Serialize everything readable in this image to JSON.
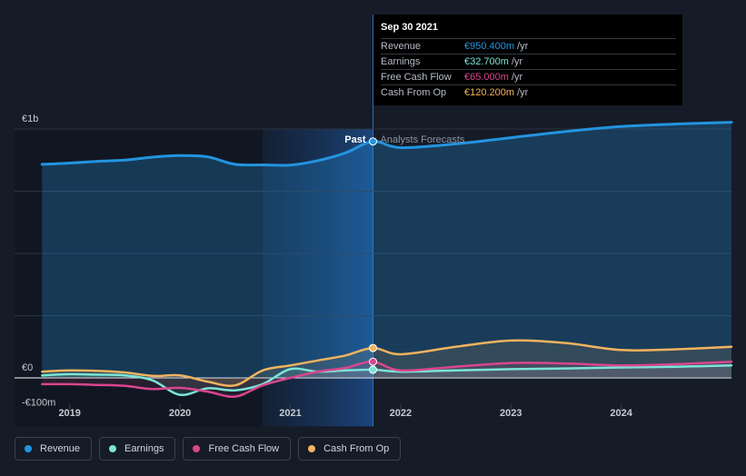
{
  "chart_data": {
    "type": "line",
    "title": "",
    "xlabel": "",
    "ylabel": "",
    "y_unit": "€m",
    "ylim": [
      -100,
      1000
    ],
    "y_ticks": [
      {
        "value": 1000,
        "label": "€1b"
      },
      {
        "value": 0,
        "label": "€0"
      },
      {
        "value": -100,
        "label": "-€100m"
      }
    ],
    "x_ticks": [
      "2019",
      "2020",
      "2021",
      "2022",
      "2023",
      "2024"
    ],
    "x_range": [
      2018.5,
      2025.0
    ],
    "past_forecast_split": 2021.75,
    "past_highlight_start": 2020.75,
    "region_labels": {
      "past": "Past",
      "forecast": "Analysts Forecasts"
    },
    "grid": true,
    "legend_position": "bottom-left",
    "series": [
      {
        "name": "Revenue",
        "color": "#2394df",
        "x": [
          2018.75,
          2019.0,
          2019.25,
          2019.5,
          2019.75,
          2020.0,
          2020.25,
          2020.5,
          2020.75,
          2021.0,
          2021.25,
          2021.5,
          2021.75,
          2022.0,
          2022.5,
          2023.0,
          2023.5,
          2024.0,
          2024.5,
          2025.0
        ],
        "y": [
          858,
          863,
          870,
          875,
          887,
          893,
          888,
          858,
          856,
          855,
          873,
          904,
          950,
          925,
          940,
          965,
          990,
          1010,
          1020,
          1027
        ]
      },
      {
        "name": "Earnings",
        "color": "#7ae5d7",
        "x": [
          2018.75,
          2019.0,
          2019.25,
          2019.5,
          2019.75,
          2020.0,
          2020.25,
          2020.5,
          2020.75,
          2021.0,
          2021.25,
          2021.5,
          2021.75,
          2022.0,
          2022.5,
          2023.0,
          2023.5,
          2024.0,
          2024.5,
          2025.0
        ],
        "y": [
          10,
          15,
          13,
          10,
          -10,
          -68,
          -42,
          -50,
          -25,
          35,
          25,
          30,
          32.7,
          25,
          30,
          35,
          38,
          42,
          45,
          50
        ]
      },
      {
        "name": "Free Cash Flow",
        "color": "#d9468e",
        "x": [
          2018.75,
          2019.0,
          2019.25,
          2019.5,
          2019.75,
          2020.0,
          2020.25,
          2020.5,
          2020.75,
          2021.0,
          2021.25,
          2021.5,
          2021.75,
          2022.0,
          2022.5,
          2023.0,
          2023.5,
          2024.0,
          2024.5,
          2025.0
        ],
        "y": [
          -25,
          -25,
          -28,
          -32,
          -45,
          -40,
          -55,
          -75,
          -30,
          0,
          25,
          40,
          65,
          30,
          45,
          60,
          58,
          50,
          55,
          65
        ]
      },
      {
        "name": "Cash From Op",
        "color": "#f2b35e",
        "x": [
          2018.75,
          2019.0,
          2019.25,
          2019.5,
          2019.75,
          2020.0,
          2020.25,
          2020.5,
          2020.75,
          2021.0,
          2021.25,
          2021.5,
          2021.75,
          2022.0,
          2022.5,
          2023.0,
          2023.5,
          2024.0,
          2024.5,
          2025.0
        ],
        "y": [
          25,
          30,
          28,
          22,
          8,
          10,
          -15,
          -30,
          30,
          50,
          70,
          90,
          120.2,
          95,
          125,
          150,
          140,
          112,
          115,
          125
        ]
      }
    ]
  },
  "tooltip": {
    "date": "Sep 30 2021",
    "rows": [
      {
        "name": "Revenue",
        "value": "€950.400m",
        "unit": "/yr",
        "color": "#2394df"
      },
      {
        "name": "Earnings",
        "value": "€32.700m",
        "unit": "/yr",
        "color": "#7ae5d7"
      },
      {
        "name": "Free Cash Flow",
        "value": "€65.000m",
        "unit": "/yr",
        "color": "#d9468e"
      },
      {
        "name": "Cash From Op",
        "value": "€120.200m",
        "unit": "/yr",
        "color": "#f2b35e"
      }
    ]
  },
  "legend": {
    "items": [
      {
        "label": "Revenue",
        "color": "#2394df"
      },
      {
        "label": "Earnings",
        "color": "#7ae5d7"
      },
      {
        "label": "Free Cash Flow",
        "color": "#d9468e"
      },
      {
        "label": "Cash From Op",
        "color": "#f2b35e"
      }
    ]
  }
}
